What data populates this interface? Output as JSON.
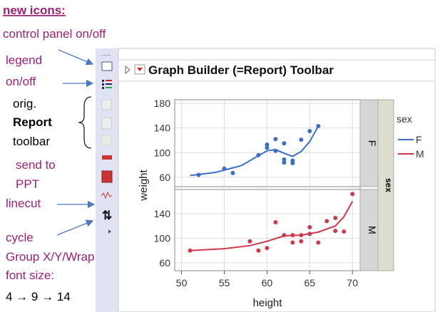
{
  "annotations": {
    "heading": "new icons:",
    "control_panel": "control panel on/off",
    "legend": [
      "legend",
      "on/off"
    ],
    "orig_toolbar": [
      "orig.",
      "Report",
      "toolbar"
    ],
    "send_to_ppt": [
      "send to",
      "PPT"
    ],
    "linecut": "linecut",
    "cycle": [
      "cycle",
      "Group X/Y/Wrap",
      "font size:"
    ],
    "font_sizes": "4 → 9 → 14"
  },
  "panel": {
    "title": "Graph Builder (=Report) Toolbar"
  },
  "chart_data": {
    "type": "scatter",
    "x_label": "height",
    "y_label": "weight",
    "group_label": "sex",
    "legend_title": "sex",
    "xlim": [
      49.2,
      70.9
    ],
    "xticks": [
      50,
      55,
      60,
      65,
      70
    ],
    "grid": true,
    "panels": [
      {
        "facet": "F",
        "ylim": [
          44.9,
          185.8
        ],
        "yticks": [
          60,
          100,
          140,
          180
        ]
      },
      {
        "facet": "M",
        "ylim": [
          47.2,
          179.4
        ],
        "yticks": [
          60,
          100,
          140
        ]
      }
    ],
    "series": [
      {
        "name": "F",
        "color": "#3a6fc8",
        "x": [
          52,
          55,
          56,
          59,
          60,
          60,
          61,
          61,
          62,
          62,
          62,
          63,
          63,
          64,
          65,
          66
        ],
        "values": [
          64,
          74,
          67,
          96,
          108,
          113,
          103,
          122,
          115,
          89,
          84,
          87,
          83,
          121,
          135,
          143
        ],
        "fit_x": [
          51,
          54,
          57,
          59,
          60,
          61,
          62,
          63,
          64,
          65,
          66
        ],
        "fit_values": [
          63,
          68,
          79,
          95,
          103,
          105,
          99,
          94,
          102,
          118,
          143
        ]
      },
      {
        "name": "M",
        "color": "#d0394c",
        "x": [
          51,
          58,
          59,
          60,
          61,
          62,
          63,
          63,
          64,
          64,
          65,
          65,
          66,
          67,
          68,
          68,
          69,
          70
        ],
        "values": [
          80,
          95,
          80,
          84,
          126,
          105,
          105,
          93,
          95,
          105,
          118,
          107,
          93,
          128,
          133,
          112,
          111,
          172
        ],
        "fit_x": [
          51,
          55,
          58,
          60,
          62,
          64,
          66,
          68,
          69,
          70
        ],
        "fit_values": [
          80,
          83,
          88,
          95,
          104,
          105,
          110,
          120,
          135,
          160
        ]
      }
    ]
  }
}
